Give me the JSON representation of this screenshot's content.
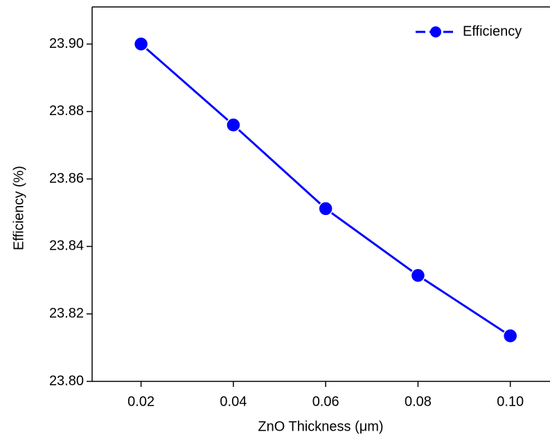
{
  "chart_data": {
    "type": "line",
    "x_label": "ZnO Thickness (μm)",
    "y_label": "Efficiency (%)",
    "x": [
      0.02,
      0.04,
      0.06,
      0.08,
      0.1
    ],
    "series": [
      {
        "name": "Efficiency",
        "color": "#0000ff",
        "values": [
          23.9,
          23.876,
          23.8512,
          23.8314,
          23.8135
        ]
      }
    ],
    "xlim": [
      0.0094,
      0.1086
    ],
    "ylim": [
      23.8,
      23.911
    ],
    "xticks": [
      0.02,
      0.04,
      0.06,
      0.08,
      {
        "value": 0.1,
        "label": "0.10"
      }
    ],
    "yticks": [
      {
        "value": 23.8,
        "label": "23.80"
      },
      23.82,
      23.84,
      23.86,
      23.88,
      {
        "value": 23.9,
        "label": "23.90"
      }
    ],
    "legend": "top-right",
    "grid": false
  }
}
